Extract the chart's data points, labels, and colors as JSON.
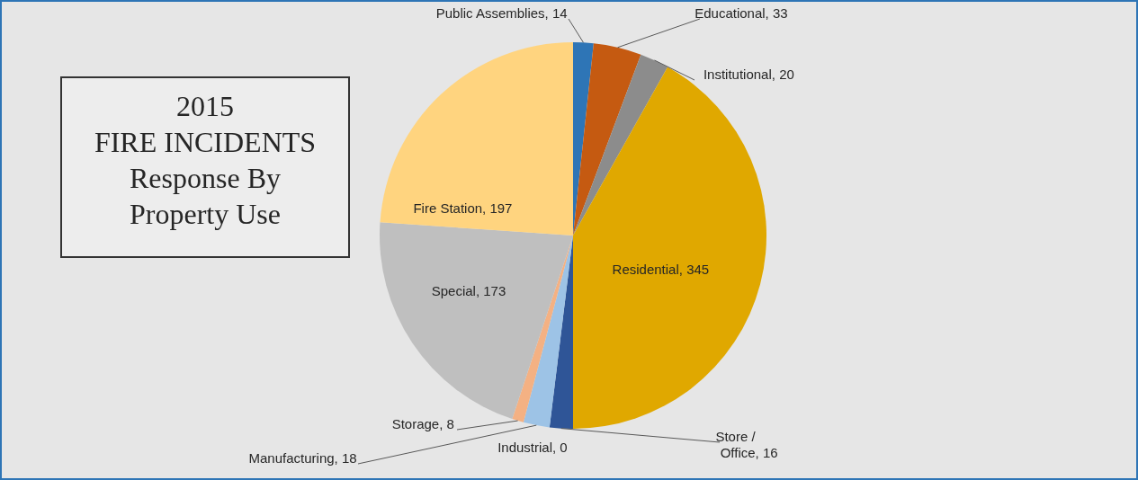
{
  "chart_data": {
    "type": "pie",
    "title": "2015\nFIRE INCIDENTS\nResponse  By\nProperty Use",
    "categories": [
      "Public Assemblies",
      "Educational",
      "Institutional",
      "Residential",
      "Store /\nOffice",
      "Industrial",
      "Manufacturing",
      "Storage",
      "Special ",
      "Fire Station"
    ],
    "values": [
      14,
      33,
      20,
      345,
      16,
      0,
      18,
      8,
      173,
      197
    ],
    "colors": [
      "#2e75b6",
      "#c55a11",
      "#8c8c8c",
      "#e0a800",
      "#2f5597",
      "#4472c4",
      "#9dc3e6",
      "#f4b183",
      "#bfbfbf",
      "#ffd47f"
    ],
    "value_labels": [
      ", 14",
      ", 33",
      ", 20",
      ", 345",
      ", 16",
      ", 0",
      ", 18",
      ", 8",
      ", 173",
      ", 197"
    ]
  }
}
